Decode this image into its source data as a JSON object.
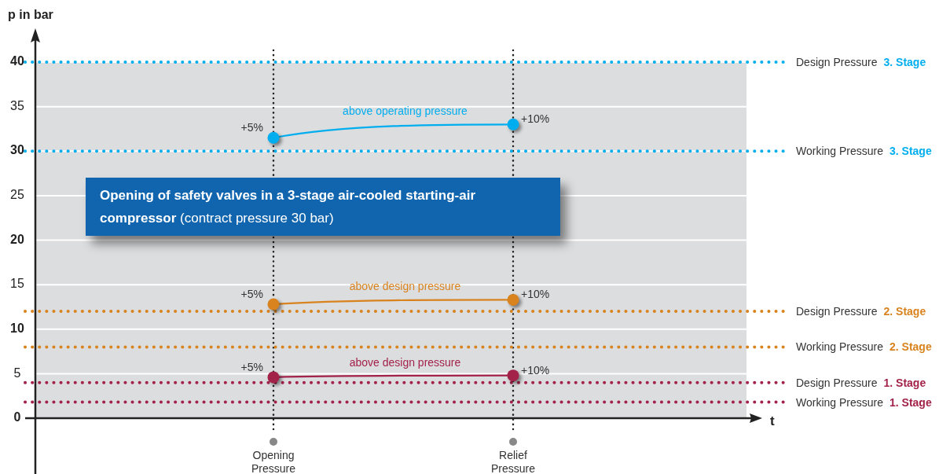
{
  "chart_data": {
    "type": "line",
    "title": "Opening of safety valves in a 3-stage air-cooled starting-air compressor",
    "subtitle": "(contract pressure 30 bar)",
    "xlabel": "t",
    "ylabel": "p in bar",
    "categories": [
      "Opening Pressure",
      "Relief Pressure"
    ],
    "series": [
      {
        "name": "above operating pressure",
        "color": "#00aeef",
        "values": [
          31.5,
          33
        ]
      },
      {
        "name": "above design pressure",
        "color": "#d9831f",
        "values": [
          12.8,
          13.3
        ]
      },
      {
        "name": "above design pressure",
        "color": "#a3224a",
        "values": [
          4.6,
          4.8
        ]
      }
    ],
    "annotations": [
      {
        "text": "+5%",
        "x": "Opening Pressure",
        "y": 31.5
      },
      {
        "text": "+10%",
        "x": "Relief Pressure",
        "y": 33
      },
      {
        "text": "+5%",
        "x": "Opening Pressure",
        "y": 12.8
      },
      {
        "text": "+10%",
        "x": "Relief Pressure",
        "y": 13.3
      },
      {
        "text": "+5%",
        "x": "Opening Pressure",
        "y": 4.6
      },
      {
        "text": "+10%",
        "x": "Relief Pressure",
        "y": 4.8
      }
    ],
    "ylim": [
      0,
      40
    ],
    "yticks": [
      0,
      5,
      10,
      15,
      20,
      25,
      30,
      35,
      40
    ],
    "grid": "y",
    "marker": "circle",
    "line_style": "solid",
    "ref_lines": [
      {
        "axis": "x",
        "value": "Opening Pressure",
        "color": "#222222",
        "line_style": "dotted"
      },
      {
        "axis": "x",
        "value": "Relief Pressure",
        "color": "#222222",
        "line_style": "dotted"
      },
      {
        "axis": "y",
        "value": 40,
        "label": "Design Pressure 3. Stage",
        "color": "#00aeef",
        "line_style": "dotted"
      },
      {
        "axis": "y",
        "value": 30,
        "label": "Working Pressure 3. Stage",
        "color": "#00aeef",
        "line_style": "dotted"
      },
      {
        "axis": "y",
        "value": 12,
        "label": "Design Pressure 2. Stage",
        "color": "#d9831f",
        "line_style": "dotted"
      },
      {
        "axis": "y",
        "value": 8,
        "label": "Working Pressure 2. Stage",
        "color": "#d9831f",
        "line_style": "dotted"
      },
      {
        "axis": "y",
        "value": 4,
        "label": "Design Pressure 1. Stage",
        "color": "#a3224a",
        "line_style": "dotted"
      },
      {
        "axis": "y",
        "value": 1.8,
        "label": "Working Pressure 1. Stage",
        "color": "#a3224a",
        "line_style": "dotted"
      }
    ]
  }
}
